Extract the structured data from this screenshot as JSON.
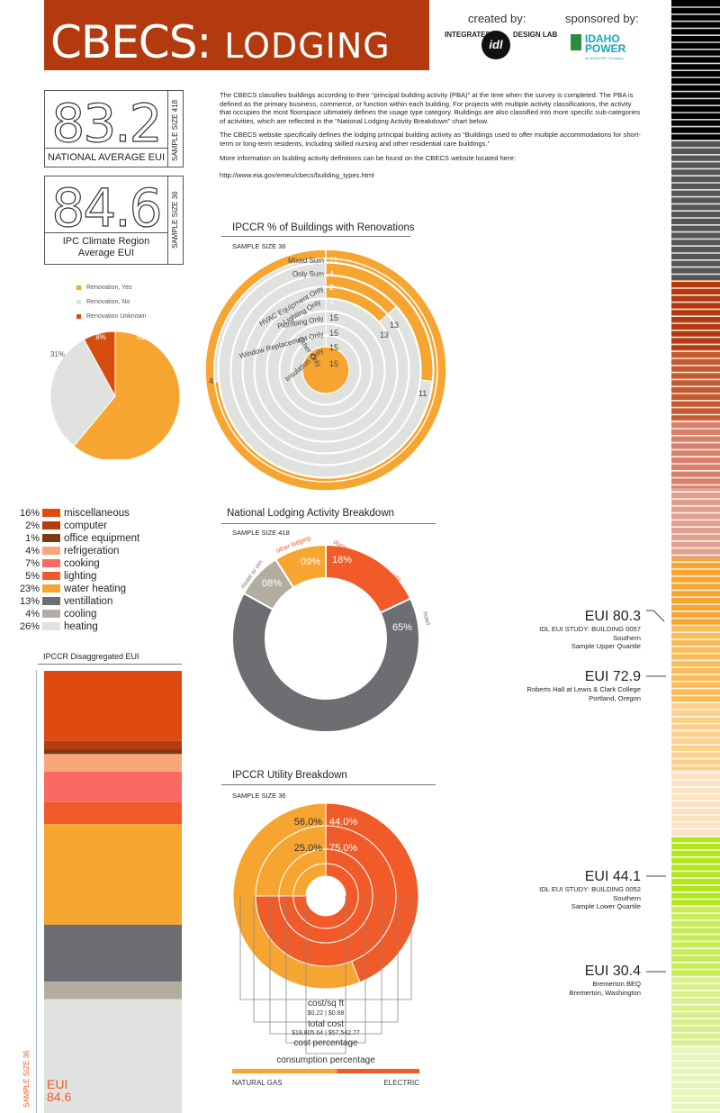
{
  "header": {
    "title_main": "CBECS:",
    "title_sub": "LODGING",
    "created_by": "created by:",
    "sponsored_by": "sponsored by:",
    "idl_left": "INTEGRATED",
    "idl_mark": "idl",
    "idl_right": "DESIGN LAB",
    "idaho_logo": "IDAHO POWER",
    "idaho_logo_sub": "An IDACORP Company"
  },
  "national_box": {
    "value": "83.2",
    "caption": "NATIONAL AVERAGE EUI",
    "sample": "SAMPLE SIZE 418"
  },
  "climate_box": {
    "value": "84.6",
    "caption_line1": "IPC Climate Region",
    "caption_line2": "Average EUI",
    "sample": "SAMPLE SIZE 36"
  },
  "intro": {
    "p1": "The CBECS classifies buildings according to their “principal building activity (PBA)” at the time when the survey is completed. The PBA is defined as the primary business, commerce, or function within each building.  For projects with multiple activity classifications, the activity that occupies the most floorspace ultimately defines the usage type category.  Buildings are also classified into more specific sub-categories of activities, which are reflected in the “National Lodging Activity Breakdown” chart below.",
    "p2": "The CBECS website specifically defines the lodging principal building activity as “Buildings used to offer multiple accommodations for short-term or long-term residents, including skilled nursing and other residential care buildings.”",
    "p3": "More information on building activity definitions can be found on the CBECS website located here:",
    "url": "http://www.eia.gov/emeu/cbecs/building_types.html"
  },
  "renovations": {
    "title": "IPCCR % of Buildings with Renovations",
    "sample": "SAMPLE SIZE 36"
  },
  "disagg_title": "IPCCR Disaggregated EUI",
  "disagg_sample": "SAMPLE SIZE 36",
  "disagg_eui_label": "EUI",
  "disagg_eui_value": "84.6",
  "lodging": {
    "title": "National Lodging Activity Breakdown",
    "sample": "SAMPLE SIZE 418"
  },
  "utility": {
    "title": "IPCCR Utility Breakdown",
    "sample": "SAMPLE SIZE 36",
    "cost_sqft_label": "cost/sq ft",
    "cost_sqft_values": "$0.22 | $0.68",
    "total_cost_label": "total cost",
    "total_cost_values": "$18,805.64 | $57,542.77",
    "cost_pct_label": "cost percentage",
    "consumption_label": "consumption percentage",
    "gas_label": "NATURAL GAS",
    "electric_label": "ELECTRIC"
  },
  "eui_markers": [
    {
      "eui": "EUI 80.3",
      "line1": "IDL EUI STUDY: BUILDING 0057",
      "line2": "Southern",
      "line3": "Sample Upper Quartile"
    },
    {
      "eui": "EUI 72.9",
      "line1": "Roberts Hall at Lewis & Clark College",
      "line2": "Portland, Oregon",
      "line3": ""
    },
    {
      "eui": "EUI 44.1",
      "line1": "IDL EUI STUDY: BUILDING 0052",
      "line2": "Southern",
      "line3": "Sample Lower Quartile"
    },
    {
      "eui": "EUI 30.4",
      "line1": "Bremerton BEQ",
      "line2": "Bremerton, Washington",
      "line3": ""
    }
  ],
  "colors": {
    "banner": "#b23a0e",
    "orange": "#f7a531",
    "electric": "#f15a29",
    "gray_light": "#dfe2de",
    "gray_dark": "#6d6e71",
    "taupe": "#b2ada0",
    "rust": "#d74d10"
  },
  "chart_data": [
    {
      "id": "renovation_pie",
      "type": "pie",
      "legend": [
        "Renovation, Yes",
        "Renovation, No",
        "Renovation Unknown"
      ],
      "values": [
        61,
        31,
        8
      ],
      "labels": [
        "61%",
        "31%",
        "8%"
      ],
      "colors": [
        "#f7a531",
        "#dfe2de",
        "#d74d10"
      ]
    },
    {
      "id": "renovation_rings",
      "type": "bar",
      "title": "IPCCR % of Buildings with Renovations",
      "categories": [
        "Mixed Sum",
        "Only Sum",
        "HVAC Equipment Only",
        "Lighting Only",
        "Plumbing Only",
        "Window Replacement Only",
        "Insulation Only",
        "Other Only"
      ],
      "series": [
        {
          "values": [
            11,
            4,
            2,
            2,
            15,
            15,
            15,
            15
          ]
        },
        {
          "values": [
            4,
            11,
            13,
            13,
            0,
            0,
            0,
            0
          ]
        }
      ]
    },
    {
      "id": "end_use",
      "type": "bar",
      "title": "IPCCR Disaggregated EUI",
      "categories": [
        "miscellaneous",
        "computer",
        "office equipment",
        "refrigeration",
        "cooking",
        "lighting",
        "water heating",
        "ventillation",
        "cooling",
        "heating"
      ],
      "labels": [
        "16%",
        "2%",
        "1%",
        "4%",
        "7%",
        "5%",
        "23%",
        "13%",
        "4%",
        "26%"
      ],
      "values": [
        16,
        2,
        1,
        4,
        7,
        5,
        23,
        13,
        4,
        26
      ],
      "colors": [
        "#e04a10",
        "#b63c0e",
        "#7a3a12",
        "#f9a77a",
        "#f86a63",
        "#f15a29",
        "#f7a531",
        "#6d6e71",
        "#b2ada0",
        "#dfe2de"
      ],
      "total_eui": 84.6
    },
    {
      "id": "lodging_breakdown",
      "type": "pie",
      "title": "National Lodging Activity Breakdown",
      "categories": [
        "dormatory/fraternity/sorority",
        "hotel",
        "motel or inn",
        "other lodging"
      ],
      "labels": [
        "18%",
        "65%",
        "08%",
        "09%"
      ],
      "values": [
        18,
        65,
        8,
        9
      ],
      "colors": [
        "#f15a29",
        "#6d6e71",
        "#b2ada0",
        "#f7a531"
      ]
    },
    {
      "id": "utility",
      "type": "pie",
      "title": "IPCCR Utility Breakdown",
      "rings": [
        {
          "name": "consumption percentage",
          "labels": [
            "56.0%",
            "44.0%"
          ],
          "values": [
            56.0,
            44.0
          ]
        },
        {
          "name": "cost percentage",
          "labels": [
            "25.0%",
            "75.0%"
          ],
          "values": [
            25.0,
            75.0
          ]
        },
        {
          "name": "total cost",
          "values": [
            18805.64,
            57542.77
          ]
        },
        {
          "name": "cost/sq ft",
          "values": [
            0.22,
            0.68
          ]
        }
      ],
      "categories": [
        "NATURAL GAS",
        "ELECTRIC"
      ],
      "colors": [
        "#f7a531",
        "#f15a29"
      ]
    }
  ]
}
